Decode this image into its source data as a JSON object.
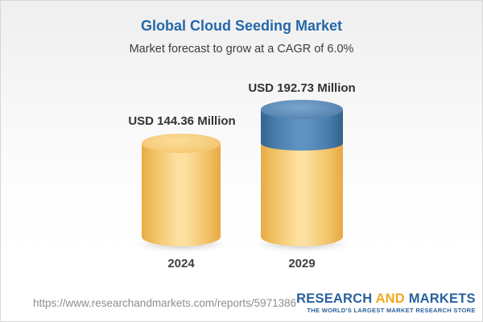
{
  "header": {
    "title": "Global Cloud Seeding Market",
    "subtitle": "Market forecast to grow at a CAGR of 6.0%"
  },
  "chart_data": {
    "type": "bar",
    "subtype": "3d-cylinder",
    "title": "Global Cloud Seeding Market",
    "subtitle": "Market forecast to grow at a CAGR of 6.0%",
    "categories": [
      "2024",
      "2029"
    ],
    "values": [
      144.36,
      192.73
    ],
    "value_labels": [
      "USD 144.36 Million",
      "USD 192.73 Million"
    ],
    "unit": "USD Million",
    "cagr_percent": 6.0,
    "legend": "none",
    "grid": false,
    "axes_shown": false,
    "ylim": [
      0,
      200
    ],
    "notes": "2029 cylinder is yellow up to the 2024 value (144.36) with a blue segment on top representing growth to 192.73",
    "colors": {
      "bar_yellow": "#f5c469",
      "growth_blue": "#4a7dad",
      "title_blue": "#2568a9",
      "label_text": "#333333"
    }
  },
  "footer": {
    "url": "https://www.researchandmarkets.com/reports/5971386",
    "logo": {
      "part1": "RESEARCH",
      "part2": "AND",
      "part3": "MARKETS",
      "tagline": "THE WORLD'S LARGEST MARKET RESEARCH STORE",
      "blue": "#29619c",
      "orange": "#f2a71c"
    }
  }
}
